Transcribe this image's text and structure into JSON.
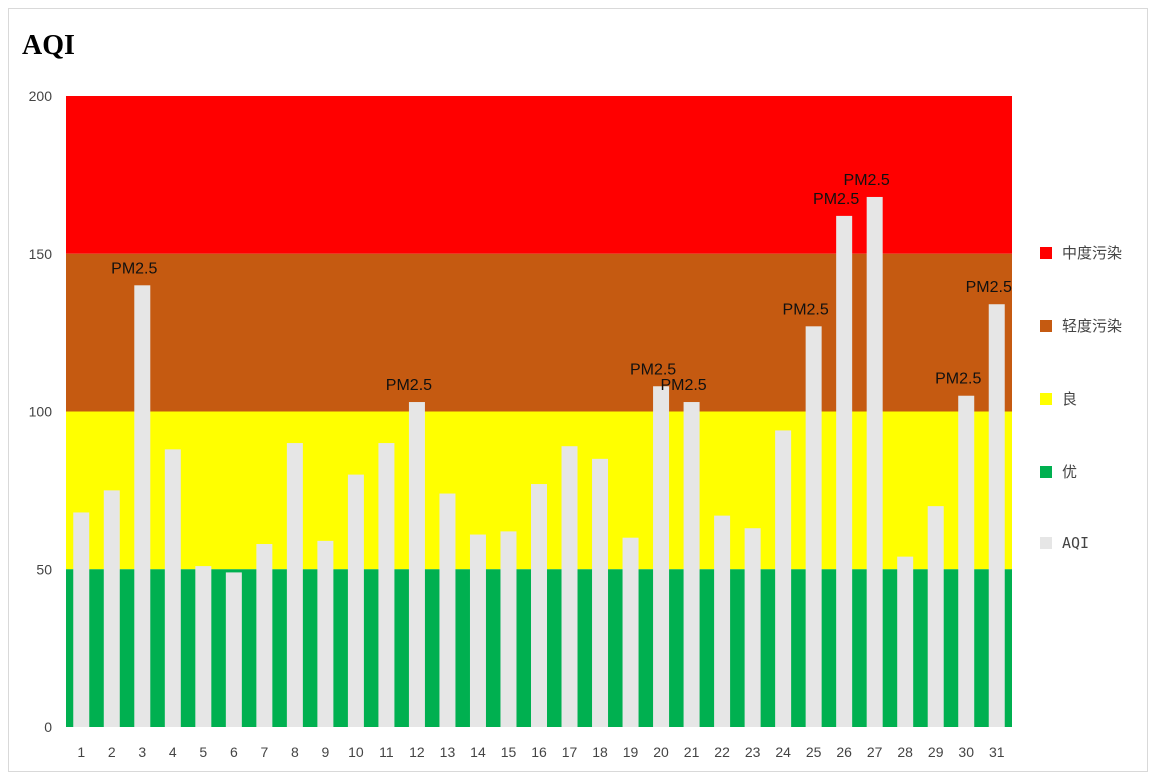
{
  "chart_data": {
    "type": "bar",
    "title": "AQI",
    "xlabel": "",
    "ylabel": "",
    "ylim": [
      0,
      200
    ],
    "yticks": [
      0,
      50,
      100,
      150,
      200
    ],
    "grid": false,
    "legend_position": "right",
    "categories": [
      "1",
      "2",
      "3",
      "4",
      "5",
      "6",
      "7",
      "8",
      "9",
      "10",
      "11",
      "12",
      "13",
      "14",
      "15",
      "16",
      "17",
      "18",
      "19",
      "20",
      "21",
      "22",
      "23",
      "24",
      "25",
      "26",
      "27",
      "28",
      "29",
      "30",
      "31"
    ],
    "bands": [
      {
        "name": "中度污染",
        "from": 150,
        "to": 200,
        "color": "#ff0000"
      },
      {
        "name": "轻度污染",
        "from": 100,
        "to": 150,
        "color": "#c55a11"
      },
      {
        "name": "良",
        "from": 50,
        "to": 100,
        "color": "#ffff00"
      },
      {
        "name": "优",
        "from": 0,
        "to": 50,
        "color": "#00b050"
      }
    ],
    "series": [
      {
        "name": "AQI",
        "color": "#e6e6e6",
        "values": [
          68,
          75,
          140,
          88,
          51,
          49,
          58,
          90,
          59,
          80,
          90,
          103,
          74,
          61,
          62,
          77,
          89,
          85,
          60,
          108,
          103,
          67,
          63,
          94,
          127,
          162,
          168,
          54,
          70,
          105,
          134
        ]
      }
    ],
    "annotations": [
      {
        "category": "3",
        "text": "PM2.5"
      },
      {
        "category": "12",
        "text": "PM2.5"
      },
      {
        "category": "20",
        "text": "PM2.5"
      },
      {
        "category": "21",
        "text": "PM2.5"
      },
      {
        "category": "25",
        "text": "PM2.5"
      },
      {
        "category": "26",
        "text": "PM2.5"
      },
      {
        "category": "27",
        "text": "PM2.5"
      },
      {
        "category": "30",
        "text": "PM2.5"
      },
      {
        "category": "31",
        "text": "PM2.5"
      }
    ]
  }
}
